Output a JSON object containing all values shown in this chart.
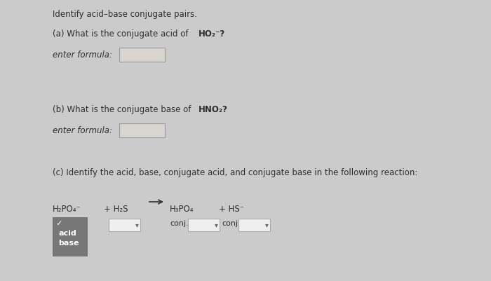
{
  "bg_color": "#cccbcb",
  "text_color": "#2e2e2e",
  "title": "Identify acid–base conjugate pairs.",
  "part_a_normal": "(a) What is the conjugate acid of ",
  "part_a_bold": "HO₂⁻",
  "part_a_suffix": "?",
  "part_a_input": "enter formula:",
  "part_b_normal": "(b) What is the conjugate base of ",
  "part_b_bold": "HNO₂",
  "part_b_suffix": "?",
  "part_b_input": "enter formula:",
  "part_c": "(c) Identify the acid, base, conjugate acid, and conjugate base in the following reaction:",
  "rxn_left": "H₂PO₄⁻",
  "rxn_plus1": "+ H₂S",
  "rxn_right1": "H₃PO₄",
  "rxn_plus2": "+ HS⁻",
  "label_acid": "acid",
  "label_base": "base",
  "label_conj": "conj.",
  "input_box_fill": "#d8d4d0",
  "dropdown_fill": "#efefef",
  "ab_box_fill": "#777777",
  "ab_text_color": "#ffffff",
  "font_size_main": 9.5,
  "font_size_small": 8.5,
  "font_size_label": 8.0
}
